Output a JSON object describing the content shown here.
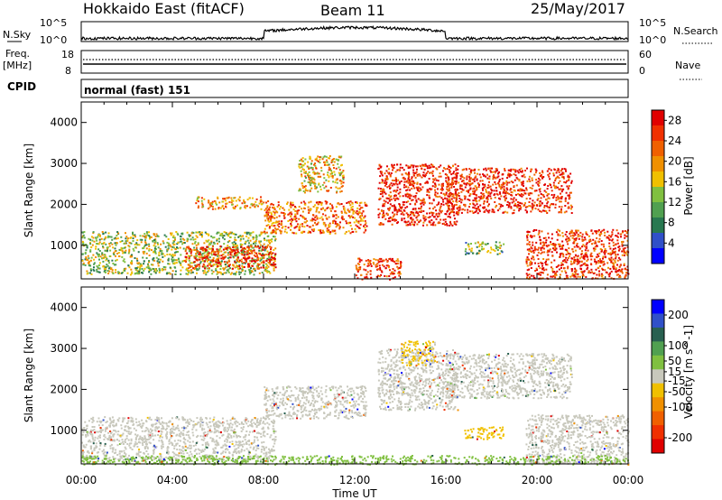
{
  "header": {
    "title": "Hokkaido East (fitACF)",
    "beam": "Beam 11",
    "date": "25/May/2017"
  },
  "colors": {
    "power_scale": [
      "#0000ff",
      "#3050c8",
      "#287850",
      "#50a050",
      "#80c040",
      "#f0c000",
      "#f09000",
      "#f06000",
      "#f03000",
      "#e00000"
    ],
    "velocity_scale": [
      "#0000ff",
      "#3050c8",
      "#286050",
      "#50a050",
      "#80c040",
      "#c8c8bc",
      "#f0c000",
      "#f09000",
      "#f06000",
      "#f03000",
      "#e00000"
    ],
    "ground_scatter": "#c8c8bc"
  },
  "params_panel": {
    "nsky_label": "N.Sky",
    "nsearch_label": "N.Search",
    "nsky_ticks": [
      "10^5",
      "10^0"
    ],
    "nsearch_ticks": [
      "10^5",
      "10^0"
    ],
    "freq_label": "Freq.",
    "freq_unit": "[MHz]",
    "freq_ticks": [
      "18",
      "8"
    ],
    "nave_label": "Nave",
    "nave_ticks": [
      "60",
      "0"
    ],
    "cpid_label": "CPID",
    "cpid_value": "normal (fast) 151"
  },
  "chart_data": [
    {
      "type": "heatmap",
      "name": "power",
      "ylabel": "Slant Range [km]",
      "xlabel": "Time UT",
      "x_ticks": [
        "00:00",
        "04:00",
        "08:00",
        "12:00",
        "16:00",
        "20:00",
        "00:00"
      ],
      "xlim_hours": [
        0,
        24
      ],
      "y_ticks": [
        1000,
        2000,
        3000,
        4000
      ],
      "ylim": [
        180,
        4500
      ],
      "colorbar": {
        "label": "Power [dB]",
        "ticks": [
          4,
          8,
          12,
          16,
          20,
          24,
          28
        ],
        "range": [
          0,
          30
        ]
      },
      "regions": [
        {
          "t0": 0.0,
          "t1": 8.5,
          "r0": 300,
          "r1": 1350,
          "value": 14
        },
        {
          "t0": 4.5,
          "t1": 8.5,
          "r0": 450,
          "r1": 1000,
          "value": 26
        },
        {
          "t0": 5.0,
          "t1": 8.0,
          "r0": 1900,
          "r1": 2200,
          "value": 20
        },
        {
          "t0": 8.0,
          "t1": 12.5,
          "r0": 1300,
          "r1": 2100,
          "value": 22
        },
        {
          "t0": 9.5,
          "t1": 11.5,
          "r0": 2300,
          "r1": 3200,
          "value": 18
        },
        {
          "t0": 13.0,
          "t1": 16.5,
          "r0": 1500,
          "r1": 3000,
          "value": 27
        },
        {
          "t0": 16.0,
          "t1": 21.5,
          "r0": 1800,
          "r1": 2900,
          "value": 26
        },
        {
          "t0": 19.5,
          "t1": 24.0,
          "r0": 200,
          "r1": 1400,
          "value": 26
        },
        {
          "t0": 16.8,
          "t1": 18.5,
          "r0": 800,
          "r1": 1100,
          "value": 12
        },
        {
          "t0": 12.0,
          "t1": 14.0,
          "r0": 180,
          "r1": 700,
          "value": 25
        }
      ]
    },
    {
      "type": "heatmap",
      "name": "velocity",
      "ylabel": "Slant Range [km]",
      "xlabel": "Time UT",
      "x_ticks": [
        "00:00",
        "04:00",
        "08:00",
        "12:00",
        "16:00",
        "20:00",
        "00:00"
      ],
      "xlim_hours": [
        0,
        24
      ],
      "y_ticks": [
        1000,
        2000,
        3000,
        4000
      ],
      "ylim": [
        180,
        4500
      ],
      "colorbar": {
        "label": "Velocity [m s^-1]",
        "ticks": [
          200,
          100,
          50,
          15,
          -15,
          -50,
          -100,
          -200
        ],
        "range": [
          -250,
          250
        ]
      },
      "regions": [
        {
          "t0": 0.0,
          "t1": 8.5,
          "r0": 300,
          "r1": 1350,
          "value": 0
        },
        {
          "t0": 8.0,
          "t1": 12.5,
          "r0": 1300,
          "r1": 2100,
          "value": 0
        },
        {
          "t0": 13.0,
          "t1": 16.5,
          "r0": 1500,
          "r1": 3000,
          "value": 0
        },
        {
          "t0": 16.0,
          "t1": 21.5,
          "r0": 1800,
          "r1": 2900,
          "value": 0
        },
        {
          "t0": 19.5,
          "t1": 24.0,
          "r0": 200,
          "r1": 1400,
          "value": 0
        },
        {
          "t0": 16.8,
          "t1": 18.5,
          "r0": 800,
          "r1": 1100,
          "value": -40
        },
        {
          "t0": 14.0,
          "t1": 15.5,
          "r0": 2600,
          "r1": 3200,
          "value": -30
        },
        {
          "t0": 0.0,
          "t1": 24.0,
          "r0": 180,
          "r1": 400,
          "value": 40
        }
      ]
    }
  ]
}
